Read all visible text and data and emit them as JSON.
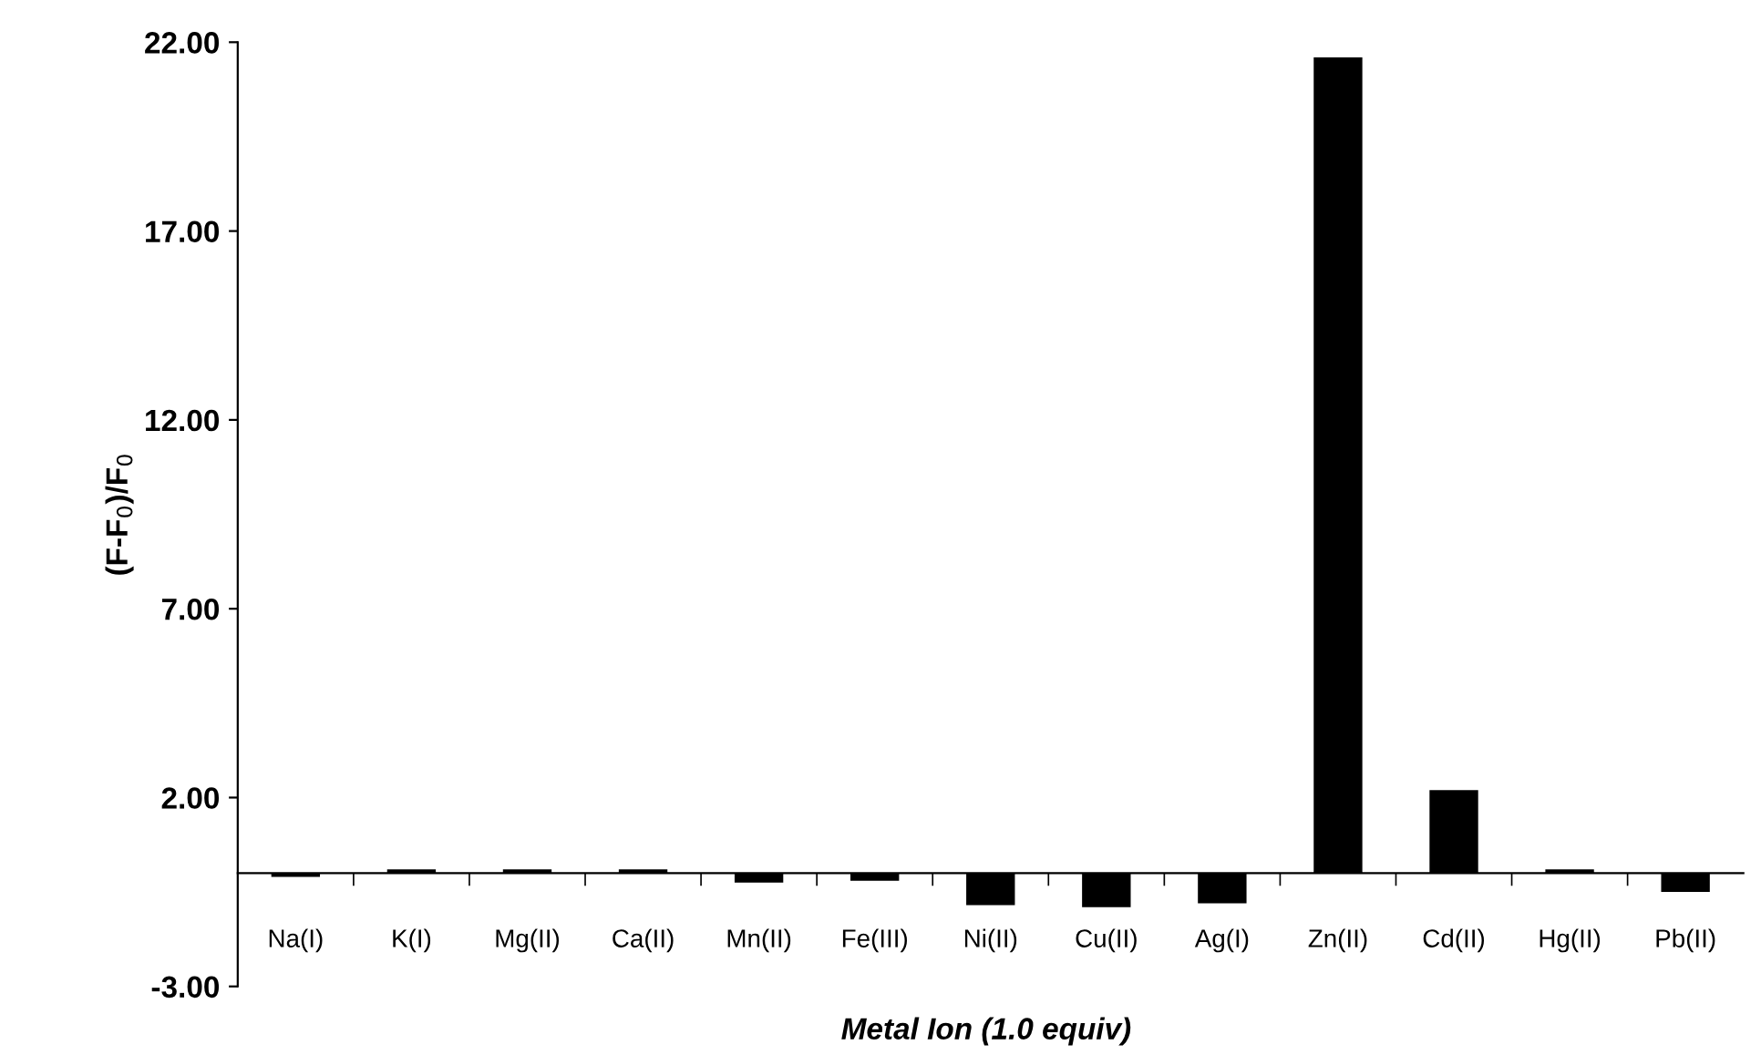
{
  "chart_data": {
    "type": "bar",
    "xlabel": "Metal Ion (1.0 equiv)",
    "ylabel": "(F-F$_{0}$)/F$_{0}$",
    "categories": [
      "Na(I)",
      "K(I)",
      "Mg(II)",
      "Ca(II)",
      "Mn(II)",
      "Fe(III)",
      "Ni(II)",
      "Cu(II)",
      "Ag(I)",
      "Zn(II)",
      "Cd(II)",
      "Hg(II)",
      "Pb(II)"
    ],
    "values": [
      -0.1,
      0.1,
      0.1,
      0.1,
      -0.25,
      -0.2,
      -0.85,
      -0.9,
      -0.8,
      21.6,
      2.2,
      0.1,
      -0.5
    ],
    "color": "#000000",
    "ylim": [
      -3,
      22
    ],
    "yticks": [
      {
        "value": -3,
        "label": "-3.00"
      },
      {
        "value": 2,
        "label": "2.00"
      },
      {
        "value": 7,
        "label": "7.00"
      },
      {
        "value": 12,
        "label": "12.00"
      },
      {
        "value": 17,
        "label": "17.00"
      },
      {
        "value": 22,
        "label": "22.00"
      }
    ],
    "grid": false
  }
}
